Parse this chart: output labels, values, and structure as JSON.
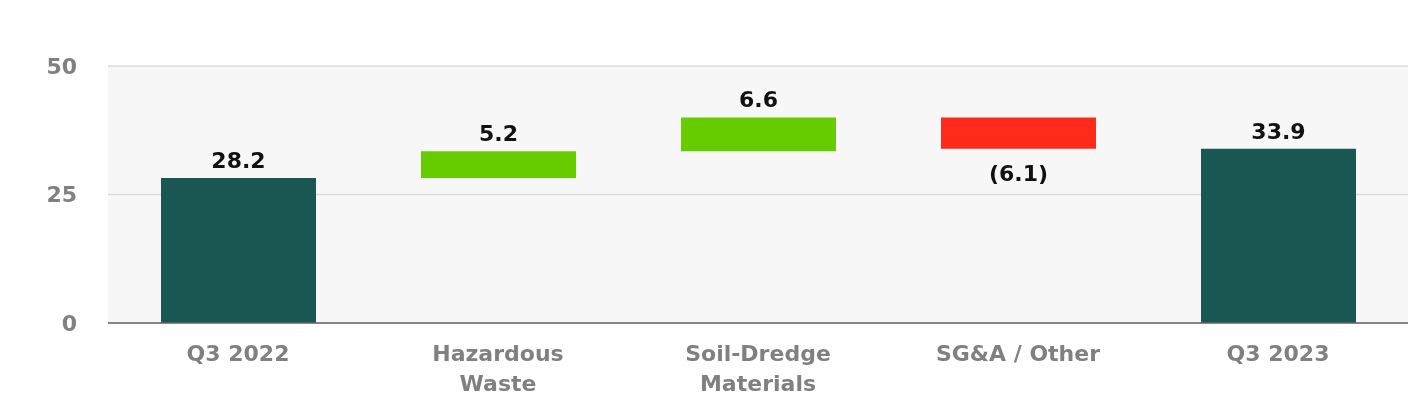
{
  "chart_data": {
    "type": "bar",
    "categories": [
      "Q3 2022",
      "Hazardous Waste",
      "Soil-Dredge Materials",
      "SG&A / Other",
      "Q3 2023"
    ],
    "values": [
      28.2,
      5.2,
      6.6,
      -6.1,
      33.9
    ],
    "base": [
      0,
      28.2,
      33.4,
      40.0,
      0
    ],
    "colors": [
      "#1b5752",
      "#66cc00",
      "#66cc00",
      "#ff2a1a",
      "#1b5752"
    ],
    "value_labels": [
      "28.2",
      "5.2",
      "6.6",
      "(6.1)",
      "33.9"
    ],
    "ylim": [
      0,
      50
    ],
    "yticks": [
      0,
      25,
      50
    ],
    "grid": "y"
  }
}
